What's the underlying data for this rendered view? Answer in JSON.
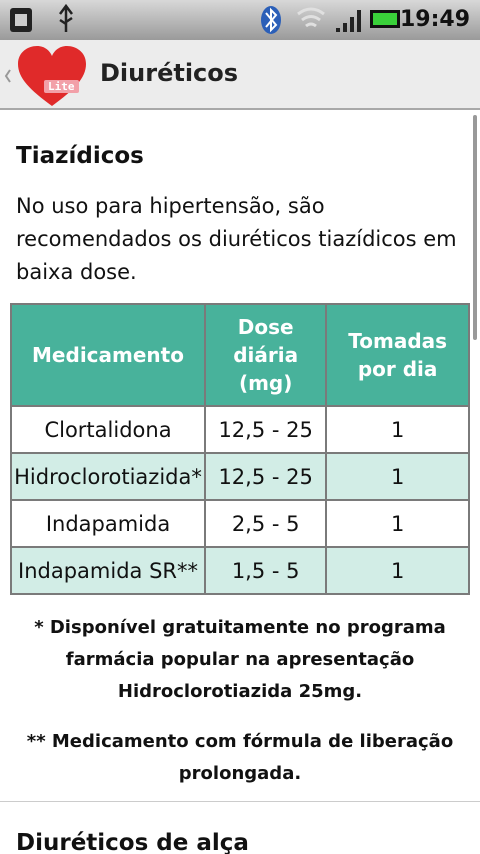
{
  "status_bar": {
    "time": "19:49"
  },
  "app_bar": {
    "badge": "Lite",
    "title": "Diuréticos"
  },
  "sections": [
    {
      "heading": "Tiazídicos",
      "text": "No uso para hipertensão, são recomendados os diuréticos tiazídicos em baixa dose.",
      "table": {
        "header": [
          "Medicamento",
          "Dose diária (mg)",
          "Tomadas por dia"
        ],
        "rows": [
          [
            "Clortalidona",
            "12,5 - 25",
            "1"
          ],
          [
            "Hidroclorotiazida*",
            "12,5 - 25",
            "1"
          ],
          [
            "Indapamida",
            "2,5 - 5",
            "1"
          ],
          [
            "Indapamida SR**",
            "1,5 - 5",
            "1"
          ]
        ]
      },
      "notes": [
        "* Disponível gratuitamente no programa farmácia popular na apresentação Hidroclorotiazida 25mg.",
        "** Medicamento com fórmula de liberação prolongada."
      ]
    },
    {
      "heading": "Diuréticos de alça"
    }
  ]
}
